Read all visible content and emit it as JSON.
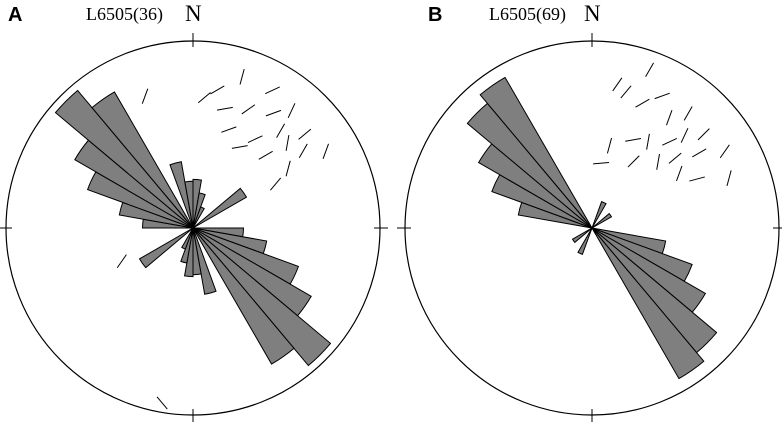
{
  "figure": {
    "panels": [
      {
        "letter": "A",
        "title": "L6505(36)",
        "north": "N"
      },
      {
        "letter": "B",
        "title": "L6505(69)",
        "north": "N"
      }
    ]
  },
  "colors": {
    "petal_fill": "#7f7f7f",
    "petal_stroke": "#000000",
    "circle_stroke": "#000000",
    "poles": "#000000"
  },
  "chart_data": [
    {
      "type": "rose",
      "title": "L6505(36)",
      "north_label": "N",
      "bin_width_deg": 10,
      "symmetric": true,
      "radius_scale": [
        0,
        1
      ],
      "bins": [
        {
          "azimuth_start": 0,
          "azimuth_end": 10,
          "value": 0.26
        },
        {
          "azimuth_start": 10,
          "azimuth_end": 20,
          "value": 0.19
        },
        {
          "azimuth_start": 20,
          "azimuth_end": 30,
          "value": 0.12
        },
        {
          "azimuth_start": 50,
          "azimuth_end": 60,
          "value": 0.33
        },
        {
          "azimuth_start": 90,
          "azimuth_end": 100,
          "value": 0.27
        },
        {
          "azimuth_start": 100,
          "azimuth_end": 110,
          "value": 0.4
        },
        {
          "azimuth_start": 110,
          "azimuth_end": 120,
          "value": 0.6
        },
        {
          "azimuth_start": 120,
          "azimuth_end": 130,
          "value": 0.73
        },
        {
          "azimuth_start": 130,
          "azimuth_end": 140,
          "value": 0.96
        },
        {
          "azimuth_start": 140,
          "azimuth_end": 150,
          "value": 0.84
        },
        {
          "azimuth_start": 160,
          "azimuth_end": 170,
          "value": 0.36
        },
        {
          "azimuth_start": 170,
          "azimuth_end": 180,
          "value": 0.25
        }
      ],
      "lineations": [
        {
          "azimuth": 45,
          "distance": 0.55,
          "trend": 60
        },
        {
          "azimuth": 35,
          "distance": 0.75,
          "trend": 70
        },
        {
          "azimuth": 25,
          "distance": 0.7,
          "trend": 55
        },
        {
          "azimuth": 30,
          "distance": 0.85,
          "trend": 65
        },
        {
          "azimuth": 40,
          "distance": 0.82,
          "trend": 25
        },
        {
          "azimuth": 42,
          "distance": 0.7,
          "trend": 30
        },
        {
          "azimuth": 48,
          "distance": 0.68,
          "trend": 10
        },
        {
          "azimuth": 50,
          "distance": 0.78,
          "trend": 50
        },
        {
          "azimuth": 55,
          "distance": 0.72,
          "trend": 30
        },
        {
          "azimuth": 58,
          "distance": 0.6,
          "trend": 15
        },
        {
          "azimuth": 62,
          "distance": 0.5,
          "trend": 40
        },
        {
          "azimuth": 60,
          "distance": 0.82,
          "trend": 20
        },
        {
          "azimuth": 20,
          "distance": 0.56,
          "trend": 70
        },
        {
          "azimuth": 15,
          "distance": 0.66,
          "trend": 80
        },
        {
          "azimuth": 10,
          "distance": 0.75,
          "trend": 60
        },
        {
          "azimuth": 5,
          "distance": 0.7,
          "trend": 50
        },
        {
          "azimuth": 30,
          "distance": 0.5,
          "trend": 80
        },
        {
          "azimuth": 35,
          "distance": 0.58,
          "trend": 65
        },
        {
          "azimuth": 18,
          "distance": 0.85,
          "trend": 15
        },
        {
          "azimuth": 340,
          "distance": 0.75,
          "trend": 20
        },
        {
          "azimuth": 320,
          "distance": 0.4,
          "trend": 50
        },
        {
          "azimuth": 245,
          "distance": 0.42,
          "trend": 35
        },
        {
          "azimuth": 190,
          "distance": 0.95,
          "trend": 140
        }
      ]
    },
    {
      "type": "rose",
      "title": "L6505(69)",
      "north_label": "N",
      "bin_width_deg": 10,
      "symmetric": true,
      "radius_scale": [
        0,
        1
      ],
      "bins": [
        {
          "azimuth_start": 20,
          "azimuth_end": 30,
          "value": 0.15
        },
        {
          "azimuth_start": 50,
          "azimuth_end": 60,
          "value": 0.12
        },
        {
          "azimuth_start": 100,
          "azimuth_end": 110,
          "value": 0.4
        },
        {
          "azimuth_start": 110,
          "azimuth_end": 120,
          "value": 0.57
        },
        {
          "azimuth_start": 120,
          "azimuth_end": 130,
          "value": 0.7
        },
        {
          "azimuth_start": 130,
          "azimuth_end": 140,
          "value": 0.87
        },
        {
          "azimuth_start": 140,
          "azimuth_end": 150,
          "value": 0.93
        }
      ],
      "lineations": [
        {
          "azimuth": 10,
          "distance": 0.78,
          "trend": 35
        },
        {
          "azimuth": 14,
          "distance": 0.75,
          "trend": 40
        },
        {
          "azimuth": 22,
          "distance": 0.72,
          "trend": 60
        },
        {
          "azimuth": 28,
          "distance": 0.8,
          "trend": 70
        },
        {
          "azimuth": 35,
          "distance": 0.72,
          "trend": 20
        },
        {
          "azimuth": 40,
          "distance": 0.8,
          "trend": 30
        },
        {
          "azimuth": 45,
          "distance": 0.7,
          "trend": 25
        },
        {
          "azimuth": 50,
          "distance": 0.78,
          "trend": 45
        },
        {
          "azimuth": 55,
          "distance": 0.7,
          "trend": 60
        },
        {
          "azimuth": 60,
          "distance": 0.82,
          "trend": 35
        },
        {
          "azimuth": 65,
          "distance": 0.62,
          "trend": 75
        },
        {
          "azimuth": 70,
          "distance": 0.78,
          "trend": 15
        },
        {
          "azimuth": 25,
          "distance": 0.52,
          "trend": 80
        },
        {
          "azimuth": 33,
          "distance": 0.55,
          "trend": 10
        },
        {
          "azimuth": 45,
          "distance": 0.5,
          "trend": 10
        },
        {
          "azimuth": 50,
          "distance": 0.58,
          "trend": 50
        },
        {
          "azimuth": 42,
          "distance": 0.62,
          "trend": 65
        },
        {
          "azimuth": 58,
          "distance": 0.55,
          "trend": 20
        },
        {
          "azimuth": 32,
          "distance": 0.42,
          "trend": 45
        },
        {
          "azimuth": 12,
          "distance": 0.45,
          "trend": 15
        },
        {
          "azimuth": 8,
          "distance": 0.35,
          "trend": 85
        },
        {
          "azimuth": 20,
          "distance": 0.9,
          "trend": 30
        }
      ]
    }
  ]
}
